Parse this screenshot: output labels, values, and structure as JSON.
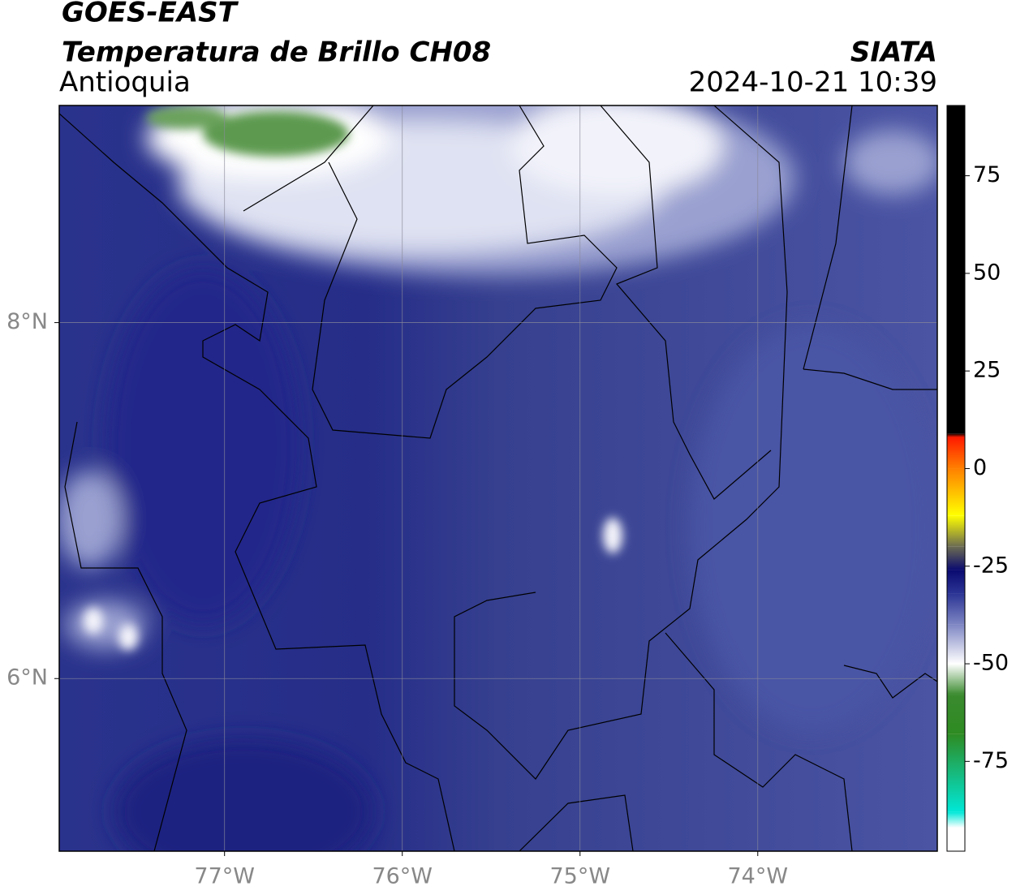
{
  "header": {
    "title": "GOES-EAST",
    "subtitle": "Temperatura de Brillo CH08",
    "region": "Antioquia",
    "source": "SIATA",
    "datetime": "2024-10-21 10:39"
  },
  "map": {
    "xlim": [
      -77.93,
      -72.99
    ],
    "ylim": [
      5.03,
      9.22
    ],
    "grid": true,
    "xticks": [
      {
        "value": -77,
        "label": "77°W"
      },
      {
        "value": -76,
        "label": "76°W"
      },
      {
        "value": -75,
        "label": "75°W"
      },
      {
        "value": -74,
        "label": "74°W"
      }
    ],
    "yticks": [
      {
        "value": 8,
        "label": "8°N"
      },
      {
        "value": 6,
        "label": "6°N"
      }
    ]
  },
  "colorbar": {
    "lim": [
      -98,
      93
    ],
    "ticks": [
      75,
      50,
      25,
      0,
      -25,
      -50,
      -75
    ],
    "stops": [
      {
        "value": 93,
        "color": "#000000"
      },
      {
        "value": 9,
        "color": "#000000"
      },
      {
        "value": 8,
        "color": "#ff1a00"
      },
      {
        "value": 0,
        "color": "#ff8000"
      },
      {
        "value": -12,
        "color": "#ffff00"
      },
      {
        "value": -20,
        "color": "#6b6b52"
      },
      {
        "value": -26,
        "color": "#0a0a70"
      },
      {
        "value": -32,
        "color": "#2b3494"
      },
      {
        "value": -40,
        "color": "#7f87c4"
      },
      {
        "value": -50,
        "color": "#ffffff"
      },
      {
        "value": -58,
        "color": "#3a8a2e"
      },
      {
        "value": -68,
        "color": "#2e8b22"
      },
      {
        "value": -88,
        "color": "#00e8d8"
      },
      {
        "value": -92,
        "color": "#ffffff"
      },
      {
        "value": -98,
        "color": "#ffffff"
      }
    ]
  }
}
